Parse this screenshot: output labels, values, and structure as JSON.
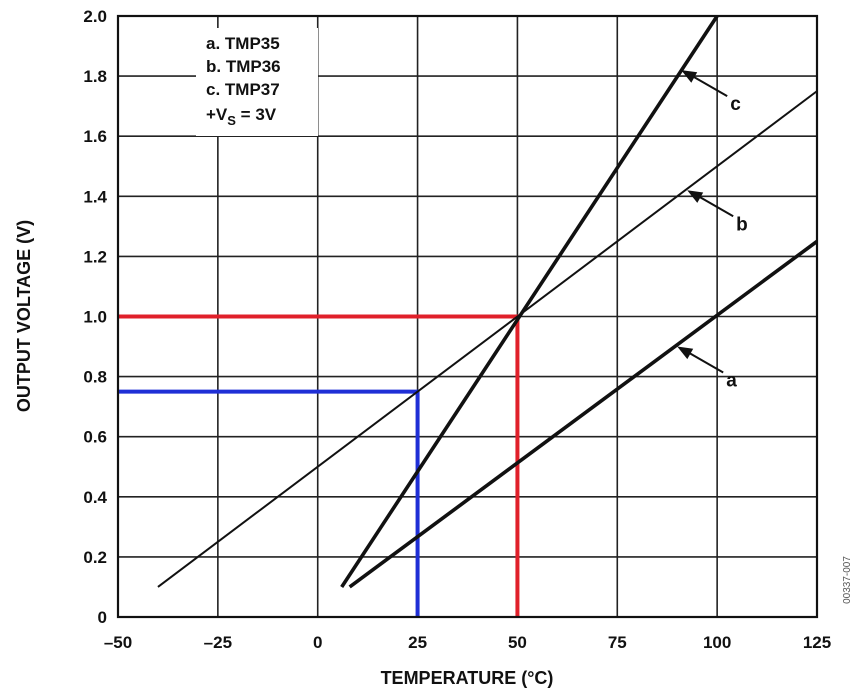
{
  "chart_data": {
    "type": "line",
    "xlabel": "TEMPERATURE (°C)",
    "ylabel": "OUTPUT VOLTAGE (V)",
    "xlim": [
      -50,
      125
    ],
    "ylim": [
      0,
      2.0
    ],
    "x_ticks": [
      "–50",
      "–25",
      "0",
      "25",
      "50",
      "75",
      "100",
      "125"
    ],
    "x_tick_values": [
      -50,
      -25,
      0,
      25,
      50,
      75,
      100,
      125
    ],
    "y_ticks": [
      "0",
      "0.2",
      "0.4",
      "0.6",
      "0.8",
      "1.0",
      "1.2",
      "1.4",
      "1.6",
      "1.8",
      "2.0"
    ],
    "y_tick_values": [
      0,
      0.2,
      0.4,
      0.6,
      0.8,
      1.0,
      1.2,
      1.4,
      1.6,
      1.8,
      2.0
    ],
    "grid": true,
    "legend": {
      "placement": "top-left",
      "entries": [
        "a.  TMP35",
        "b.  TMP36",
        "c.  TMP37"
      ],
      "supply_prefix": "+V",
      "supply_sub": "S",
      "supply_suffix": " = 3V"
    },
    "series": [
      {
        "name": "a",
        "x": [
          8,
          125
        ],
        "y": [
          0.1,
          1.25
        ],
        "weight": "bold",
        "label_text": "a",
        "arrow_at": [
          90,
          0.9
        ]
      },
      {
        "name": "b",
        "x": [
          -40,
          125
        ],
        "y": [
          0.1,
          1.75
        ],
        "weight": "thin",
        "label_text": "b",
        "arrow_at": [
          92.5,
          1.42
        ]
      },
      {
        "name": "c",
        "x": [
          6,
          100
        ],
        "y": [
          0.1,
          2.0
        ],
        "weight": "bold",
        "label_text": "c",
        "arrow_at": [
          91,
          1.82
        ]
      }
    ],
    "highlights": [
      {
        "x": 25,
        "y": 0.75,
        "color": "#1f2fd6"
      },
      {
        "x": 50,
        "y": 1.0,
        "color": "#e0202a"
      }
    ],
    "figure_id": "00337-007"
  }
}
